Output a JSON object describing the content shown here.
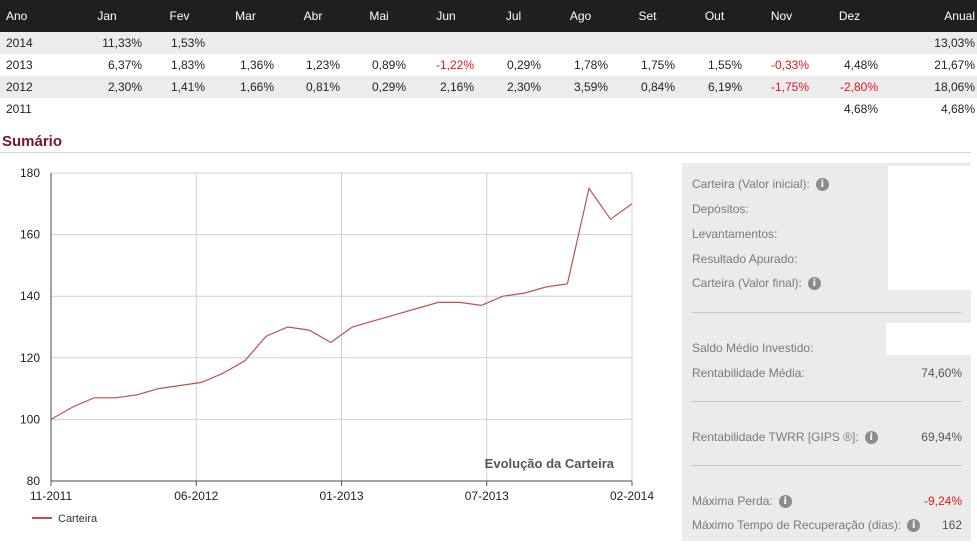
{
  "returns_table": {
    "headers": [
      "Ano",
      "Jan",
      "Fev",
      "Mar",
      "Abr",
      "Mai",
      "Jun",
      "Jul",
      "Ago",
      "Set",
      "Out",
      "Nov",
      "Dez",
      "Anual"
    ],
    "rows": [
      [
        "2014",
        "11,33%",
        "1,53%",
        "",
        "",
        "",
        "",
        "",
        "",
        "",
        "",
        "",
        "",
        "13,03%"
      ],
      [
        "2013",
        "6,37%",
        "1,83%",
        "1,36%",
        "1,23%",
        "0,89%",
        "-1,22%",
        "0,29%",
        "1,78%",
        "1,75%",
        "1,55%",
        "-0,33%",
        "4,48%",
        "21,67%"
      ],
      [
        "2012",
        "2,30%",
        "1,41%",
        "1,66%",
        "0,81%",
        "0,29%",
        "2,16%",
        "2,30%",
        "3,59%",
        "0,84%",
        "6,19%",
        "-1,75%",
        "-2,80%",
        "18,06%"
      ],
      [
        "2011",
        "",
        "",
        "",
        "",
        "",
        "",
        "",
        "",
        "",
        "",
        "",
        "4,68%",
        "4,68%"
      ]
    ]
  },
  "summary": {
    "title": "Sumário",
    "labels": {
      "initial": "Carteira (Valor inicial):",
      "deposits": "Depósitos:",
      "withdrawals": "Levantamentos:",
      "result": "Resultado Apurado:",
      "final": "Carteira (Valor final):",
      "avg_invested": "Saldo Médio Investido:",
      "avg_return": "Rentabilidade Média:",
      "twrr": "Rentabilidade TWRR [GIPS ®]:",
      "max_loss": "Máxima Perda:",
      "max_recovery": "Máximo Tempo de Recuperação (dias):"
    },
    "values": {
      "avg_return": "74,60%",
      "twrr": "69,94%",
      "max_loss": "-9,24%",
      "max_recovery": "162"
    },
    "info_icon": "info-icon",
    "info_glyph": "i"
  },
  "chart_data": {
    "type": "line",
    "title": "Evolução da Carteira",
    "x_tick_labels": [
      "11-2011",
      "06-2012",
      "01-2013",
      "07-2013",
      "02-2014"
    ],
    "ylim": [
      80,
      180
    ],
    "y_ticks": [
      80,
      100,
      120,
      140,
      160,
      180
    ],
    "grid": true,
    "legend_position": "bottom-left",
    "series": [
      {
        "name": "Carteira",
        "color": "#c0504d",
        "points": [
          [
            "11-2011",
            100
          ],
          [
            "12-2011",
            104
          ],
          [
            "01-2012",
            107
          ],
          [
            "02-2012",
            107
          ],
          [
            "03-2012",
            108
          ],
          [
            "04-2012",
            110
          ],
          [
            "05-2012",
            111
          ],
          [
            "06-2012",
            112
          ],
          [
            "07-2012",
            115
          ],
          [
            "08-2012",
            119
          ],
          [
            "09-2012",
            127
          ],
          [
            "10-2012",
            130
          ],
          [
            "11-2012",
            129
          ],
          [
            "12-2012",
            125
          ],
          [
            "01-2013",
            130
          ],
          [
            "02-2013",
            132
          ],
          [
            "03-2013",
            134
          ],
          [
            "04-2013",
            136
          ],
          [
            "05-2013",
            138
          ],
          [
            "06-2013",
            138
          ],
          [
            "07-2013",
            137
          ],
          [
            "08-2013",
            140
          ],
          [
            "09-2013",
            141
          ],
          [
            "10-2013",
            143
          ],
          [
            "11-2013",
            144
          ],
          [
            "12-2013",
            175
          ],
          [
            "01-2014",
            165
          ],
          [
            "02-2014",
            170
          ]
        ]
      }
    ]
  }
}
